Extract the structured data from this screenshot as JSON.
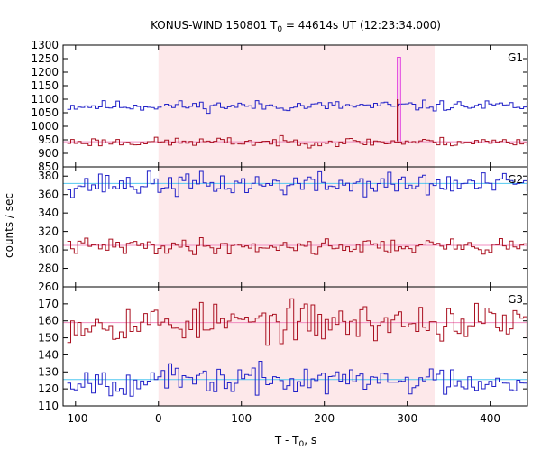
{
  "chart_data": {
    "type": "line",
    "title": {
      "prefix": "KONUS-WIND 150801 T",
      "sub": "0",
      "suffix": " = 44614s UT (12:23:34.000)"
    },
    "xlabel": {
      "prefix": "T - T",
      "sub": "0",
      "suffix": ", s"
    },
    "ylabel": "counts / sec",
    "xlim": [
      -115,
      445
    ],
    "x_ticks": [
      -100,
      0,
      100,
      200,
      300,
      400
    ],
    "highlight_interval": [
      0,
      333
    ],
    "colors": {
      "background_band": "#fde8ea",
      "red_series": "#aa1020",
      "blue_series": "#2020c8",
      "spike": "#e040e0",
      "fit_red": "#f08cc0",
      "fit_blue": "#50c8f0"
    },
    "x_start": -110,
    "bin_width": 4.2,
    "panels": [
      {
        "label": "G1",
        "ylim": [
          850,
          1300
        ],
        "y_ticks": [
          850,
          900,
          950,
          1000,
          1050,
          1100,
          1150,
          1200,
          1250,
          1300
        ],
        "series": [
          {
            "color_key": "blue_series",
            "mean": 1075,
            "amplitude": 14,
            "seed": 11
          },
          {
            "color_key": "red_series",
            "mean": 942,
            "amplitude": 12,
            "seed": 23
          }
        ],
        "fits": [
          {
            "color_key": "fit_blue",
            "y": 1075
          },
          {
            "color_key": "fit_red",
            "y": 943
          }
        ],
        "spike": {
          "x": [
            288,
            292
          ],
          "y": 1255,
          "base": 945,
          "color_key": "spike"
        }
      },
      {
        "label": "G2",
        "ylim": [
          260,
          390
        ],
        "y_ticks": [
          260,
          280,
          300,
          320,
          340,
          360,
          380
        ],
        "series": [
          {
            "color_key": "blue_series",
            "mean": 371,
            "amplitude": 9,
            "seed": 37
          },
          {
            "color_key": "red_series",
            "mean": 304,
            "amplitude": 6,
            "seed": 41
          }
        ],
        "fits": [
          {
            "color_key": "fit_blue",
            "y": 372
          },
          {
            "color_key": "fit_red",
            "y": 305
          }
        ]
      },
      {
        "label": "G3",
        "ylim": [
          110,
          180
        ],
        "y_ticks": [
          110,
          120,
          130,
          140,
          150,
          160,
          170
        ],
        "series": [
          {
            "color_key": "red_series",
            "mean": 159,
            "amplitude": 8,
            "seed": 53
          },
          {
            "color_key": "blue_series",
            "mean": 125,
            "amplitude": 6,
            "seed": 67
          }
        ],
        "fits": [
          {
            "color_key": "fit_red",
            "y": 159
          },
          {
            "color_key": "fit_blue",
            "y": 125.5
          }
        ]
      }
    ]
  }
}
